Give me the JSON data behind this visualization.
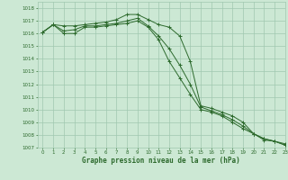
{
  "title": "Graphe pression niveau de la mer (hPa)",
  "background_color": "#cce8d4",
  "grid_color": "#a0c8b0",
  "line_color": "#2d6a2d",
  "ylim": [
    1007,
    1018.5
  ],
  "xlim": [
    -0.5,
    23
  ],
  "yticks": [
    1007,
    1008,
    1009,
    1010,
    1011,
    1012,
    1013,
    1014,
    1015,
    1016,
    1017,
    1018
  ],
  "xticks": [
    0,
    1,
    2,
    3,
    4,
    5,
    6,
    7,
    8,
    9,
    10,
    11,
    12,
    13,
    14,
    15,
    16,
    17,
    18,
    19,
    20,
    21,
    22,
    23
  ],
  "series1_x": [
    0,
    1,
    2,
    3,
    4,
    5,
    6,
    7,
    8,
    9,
    10,
    11,
    12,
    13,
    14,
    15,
    16,
    17,
    18,
    19,
    20,
    21,
    22,
    23
  ],
  "series1_y": [
    1016.1,
    1016.7,
    1016.6,
    1016.6,
    1016.7,
    1016.8,
    1016.9,
    1017.1,
    1017.5,
    1017.5,
    1017.1,
    1016.7,
    1016.5,
    1015.8,
    1013.8,
    1010.3,
    1010.1,
    1009.8,
    1009.5,
    1009.0,
    1008.1,
    1007.6,
    1007.5,
    1007.3
  ],
  "series2_x": [
    0,
    1,
    2,
    3,
    4,
    5,
    6,
    7,
    8,
    9,
    10,
    11,
    12,
    13,
    14,
    15,
    16,
    17,
    18,
    19,
    20,
    21,
    22,
    23
  ],
  "series2_y": [
    1016.1,
    1016.7,
    1016.2,
    1016.3,
    1016.6,
    1016.6,
    1016.7,
    1016.8,
    1017.0,
    1017.2,
    1016.6,
    1015.8,
    1014.8,
    1013.5,
    1012.0,
    1010.2,
    1009.9,
    1009.6,
    1009.2,
    1008.7,
    1008.1,
    1007.7,
    1007.5,
    1007.2
  ],
  "series3_x": [
    0,
    1,
    2,
    3,
    4,
    5,
    6,
    7,
    8,
    9,
    10,
    11,
    12,
    13,
    14,
    15,
    16,
    17,
    18,
    19,
    20,
    21,
    22,
    23
  ],
  "series3_y": [
    1016.1,
    1016.7,
    1016.0,
    1016.0,
    1016.5,
    1016.5,
    1016.6,
    1016.7,
    1016.8,
    1017.0,
    1016.5,
    1015.5,
    1013.8,
    1012.5,
    1011.2,
    1010.0,
    1009.8,
    1009.5,
    1009.0,
    1008.5,
    1008.1,
    1007.7,
    1007.5,
    1007.2
  ]
}
